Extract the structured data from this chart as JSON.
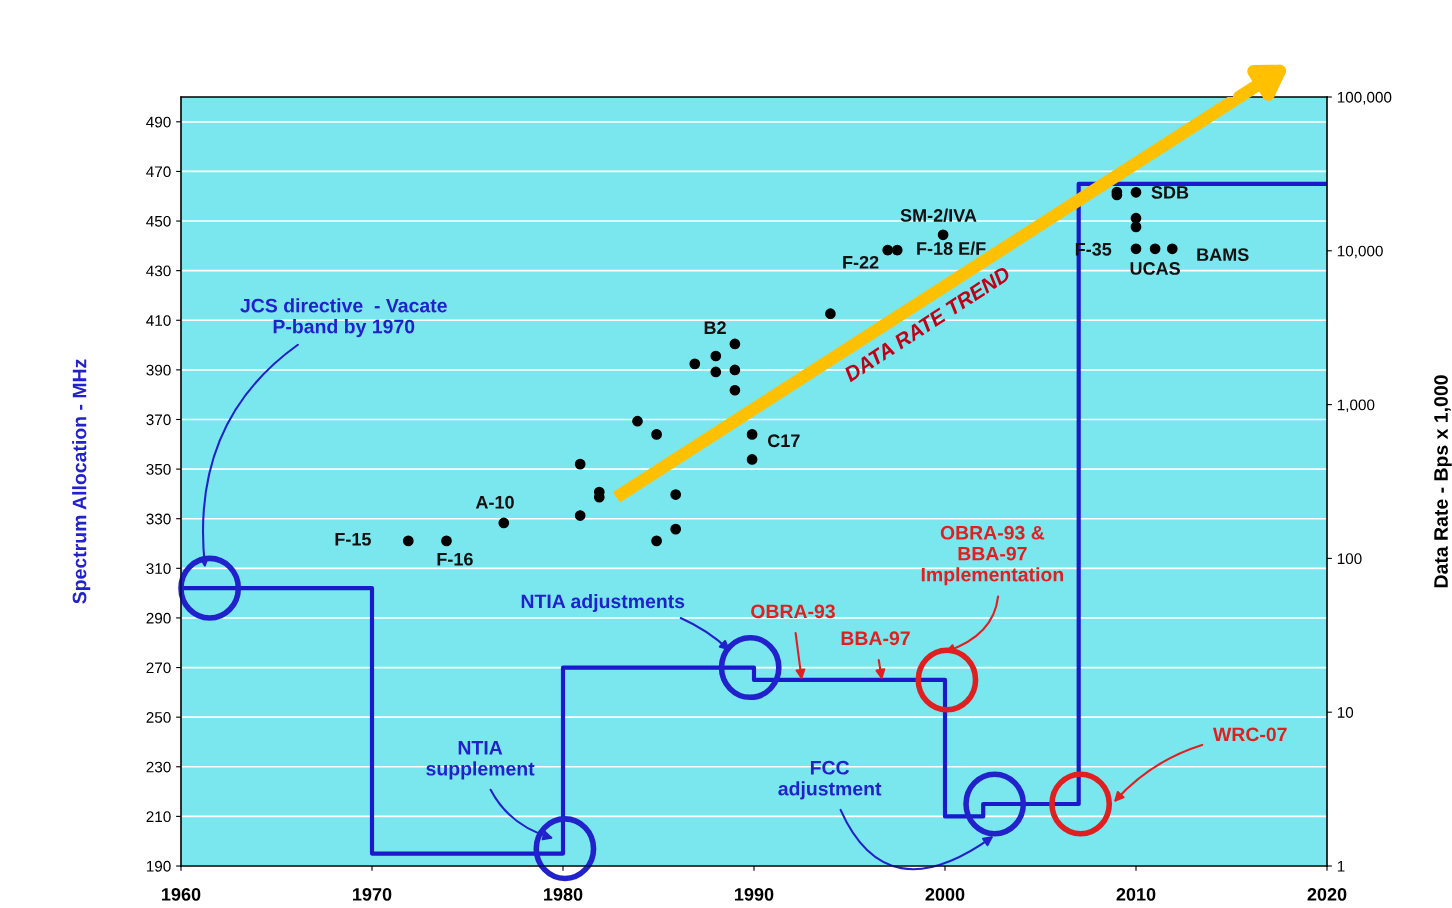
{
  "chart_data": {
    "type": "step",
    "ylabel": "Spectrum Allocation - MHz",
    "y2label": "Data Rate - Bps x 1,000",
    "xlim": [
      1960,
      2020
    ],
    "xticks": [
      1960,
      1970,
      1980,
      1990,
      2000,
      2010,
      2020
    ],
    "ylim": [
      190,
      500
    ],
    "yticks": [
      190,
      210,
      230,
      250,
      270,
      290,
      310,
      330,
      350,
      370,
      390,
      410,
      430,
      450,
      470,
      490
    ],
    "y2lim": [
      1,
      100000
    ],
    "y2ticks": [
      {
        "value": 1,
        "label": "1"
      },
      {
        "value": 10,
        "label": "10"
      },
      {
        "value": 100,
        "label": "100"
      },
      {
        "value": 1000,
        "label": "1,000"
      },
      {
        "value": 10000,
        "label": "10,000"
      },
      {
        "value": 100000,
        "label": "100,000"
      }
    ],
    "log": "y2",
    "grid": "y",
    "series": [
      {
        "color": "#1a1acc",
        "x": [
          1960,
          1970,
          1980,
          1990,
          2000,
          2002,
          2007,
          2020
        ],
        "values": [
          302,
          195,
          270,
          265,
          210,
          215,
          465,
          465
        ]
      },
      {
        "type": "scatter",
        "axis": "y2",
        "marker": "circle",
        "color": "#000000",
        "x": [
          1971.9,
          1973.9,
          1976.9,
          1980.9,
          1981.9,
          1981.9,
          1980.9,
          1983.9,
          1984.9,
          1985.9,
          1985.9,
          1984.9,
          1986.9,
          1988.0,
          1988.0,
          1989.0,
          1989.0,
          1989.0,
          1989.9,
          1989.9,
          1994.0,
          1997.0,
          1997.5,
          1999.9,
          2009.0,
          2009.0,
          2010.0,
          2010.0,
          2010.0,
          2010.0,
          2011.0,
          2011.9
        ],
        "values": [
          130,
          130,
          170,
          410,
          270,
          250,
          190,
          780,
          640,
          260,
          155,
          130,
          1840,
          2070,
          1630,
          2480,
          1680,
          1240,
          640,
          440,
          3900,
          10100,
          10100,
          12700,
          24100,
          23100,
          24000,
          16300,
          14300,
          10300,
          10300,
          10300
        ]
      },
      {
        "type": "line",
        "axis": "y2",
        "color": "#ffc000",
        "x": [
          1982.8,
          2015.4
        ],
        "values": [
          250,
          100000
        ]
      }
    ],
    "annotations": [
      "F-15",
      "F-16",
      "A-10",
      "B2",
      "C17",
      "SM-2/IVA",
      "F-22",
      "F-18 E/F",
      "F-35",
      "SDB",
      "UCAS",
      "BAMS",
      "DATA RATE TREND",
      "JCS directive  - Vacate\nP-band by 1970",
      "NTIA\nsupplement",
      "NTIA adjustments",
      {
        "text": "OBRA-93",
        "x": 1992.5,
        "y": 265
      },
      {
        "text": "BBA-97",
        "x": 1996.7,
        "y": 265
      },
      "OBRA-93 &\nBBA-97\nImplementation",
      "WRC-07",
      "FCC\nadjustment"
    ]
  }
}
